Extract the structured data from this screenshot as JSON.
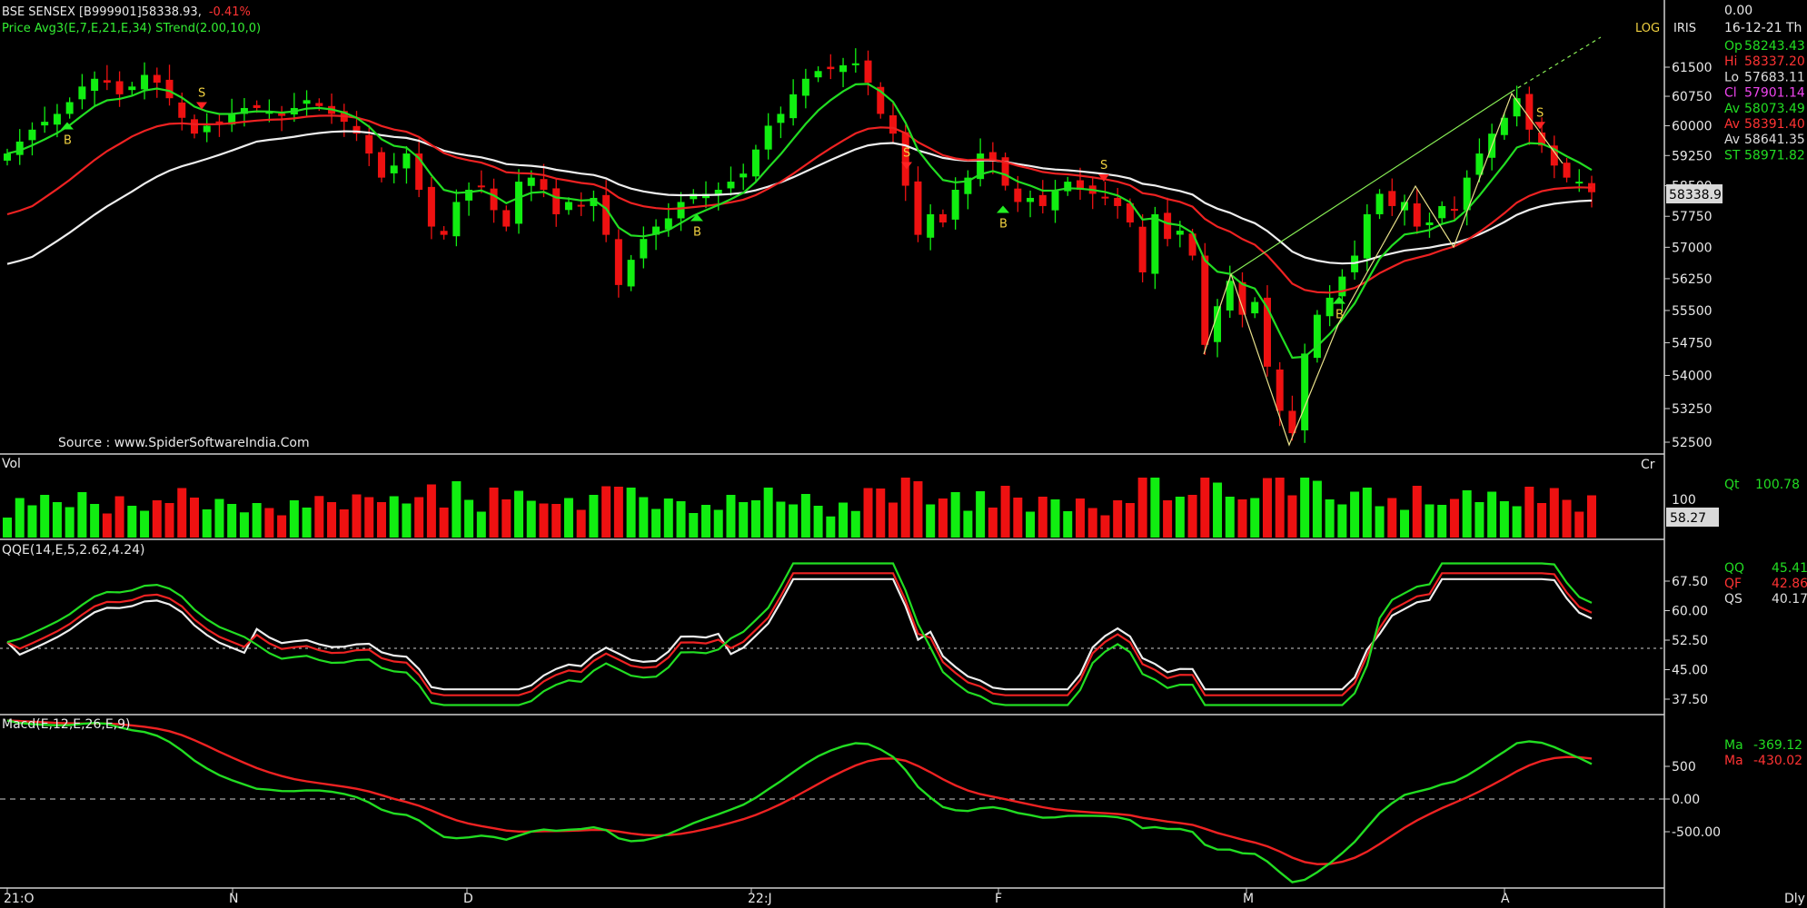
{
  "header": {
    "symbol": "BSE SENSEX [B999901]",
    "last": "58338.93,",
    "change": "-0.41%",
    "indicators_label": "Price  Avg3(E,7,E,21,E,34)  STrend(2.00,10,0)"
  },
  "top_right": {
    "log": "LOG",
    "iris": "IRIS",
    "zero": "0.00",
    "date": "16-12-21 Th"
  },
  "info_panel": [
    {
      "label": "Op",
      "value": "58243.43",
      "color": "#22dd22"
    },
    {
      "label": "Hi",
      "value": "58337.20",
      "color": "#ff3333"
    },
    {
      "label": "Lo",
      "value": "57683.11",
      "color": "#dddddd"
    },
    {
      "label": "Cl",
      "value": "57901.14",
      "color": "#ee44ee"
    },
    {
      "label": "Av",
      "value": "58073.49",
      "color": "#22dd22"
    },
    {
      "label": "Av",
      "value": "58391.40",
      "color": "#ff3333"
    },
    {
      "label": "Av",
      "value": "58641.35",
      "color": "#dddddd"
    },
    {
      "label": "ST",
      "value": "58971.82",
      "color": "#22dd22"
    }
  ],
  "source": "Source : www.SpiderSoftwareIndia.Com",
  "price_axis": {
    "ticks": [
      "61500",
      "60750",
      "60000",
      "59250",
      "58500",
      "57750",
      "57000",
      "56250",
      "55500",
      "54750",
      "54000",
      "53250",
      "52500"
    ],
    "current_label": "58338.9"
  },
  "volume": {
    "label": "Vol",
    "cr": "Cr",
    "tick": "100",
    "current_label": "58.27",
    "qt_label": "Qt",
    "qt_value": "100.78"
  },
  "qqe": {
    "label": "QQE(14,E,5,2.62,4.24)",
    "ticks": [
      "67.50",
      "60.00",
      "52.50",
      "45.00",
      "37.50"
    ],
    "readouts": [
      {
        "label": "QQ",
        "value": "45.41",
        "color": "#22dd22"
      },
      {
        "label": "QF",
        "value": "42.86",
        "color": "#ff3333"
      },
      {
        "label": "QS",
        "value": "40.17",
        "color": "#dddddd"
      }
    ]
  },
  "macd": {
    "label": "Macd(E,12,E,26,E,9)",
    "ticks": [
      "500",
      "0.00",
      "-500.00"
    ],
    "readouts": [
      {
        "label": "Ma",
        "value": "-369.12",
        "color": "#22dd22"
      },
      {
        "label": "Ma",
        "value": "-430.02",
        "color": "#ff3333"
      }
    ]
  },
  "x_axis": {
    "labels": [
      "21:O",
      "N",
      "D",
      "22:J",
      "F",
      "M",
      "A"
    ],
    "period": "Dly"
  },
  "signals": [
    "S",
    "B",
    "B",
    "S",
    "B",
    "S",
    "S",
    "B",
    "S"
  ],
  "colors": {
    "up": "#11ee11",
    "down": "#ee1111",
    "avg_fast": "#22dd22",
    "avg_mid": "#ee2222",
    "avg_slow": "#eeeeee",
    "signal_text": "#f0d040"
  },
  "chart_data": {
    "type": "candlestick",
    "title": "BSE SENSEX [B999901]",
    "scale": "log",
    "ylim": [
      52000,
      62500
    ],
    "close_series": [
      59300,
      59600,
      59900,
      60100,
      60300,
      60600,
      61000,
      61200,
      61100,
      60800,
      61000,
      61300,
      61100,
      60700,
      60200,
      59800,
      60000,
      60100,
      60300,
      60450,
      60450,
      60350,
      60250,
      60450,
      60650,
      60500,
      60300,
      60100,
      59800,
      59300,
      58700,
      59000,
      59300,
      58400,
      57500,
      57300,
      58100,
      58400,
      58500,
      57900,
      57500,
      58600,
      58700,
      58400,
      57800,
      58100,
      58000,
      58200,
      57300,
      56100,
      56700,
      57200,
      57500,
      57700,
      58100,
      58300,
      58300,
      58400,
      58600,
      58800,
      59400,
      60000,
      60300,
      60800,
      61200,
      61400,
      61450,
      61550,
      61600,
      61100,
      60300,
      59800,
      58500,
      57300,
      57800,
      57600,
      58400,
      58700,
      59300,
      59100,
      58500,
      58100,
      58200,
      58000,
      58400,
      58600,
      58400,
      58300,
      58200,
      58000,
      57600,
      56400,
      57800,
      57200,
      57400,
      56800,
      54700,
      55600,
      56200,
      55400,
      55700,
      54200,
      53200,
      52700,
      54500,
      55400,
      55800,
      56300,
      56800,
      57800,
      58300,
      58000,
      58100,
      57500,
      57600,
      58000,
      57900,
      58700,
      59300,
      59800,
      60200,
      60700,
      59900,
      59500,
      59000,
      58700,
      58600,
      58340
    ]
  }
}
